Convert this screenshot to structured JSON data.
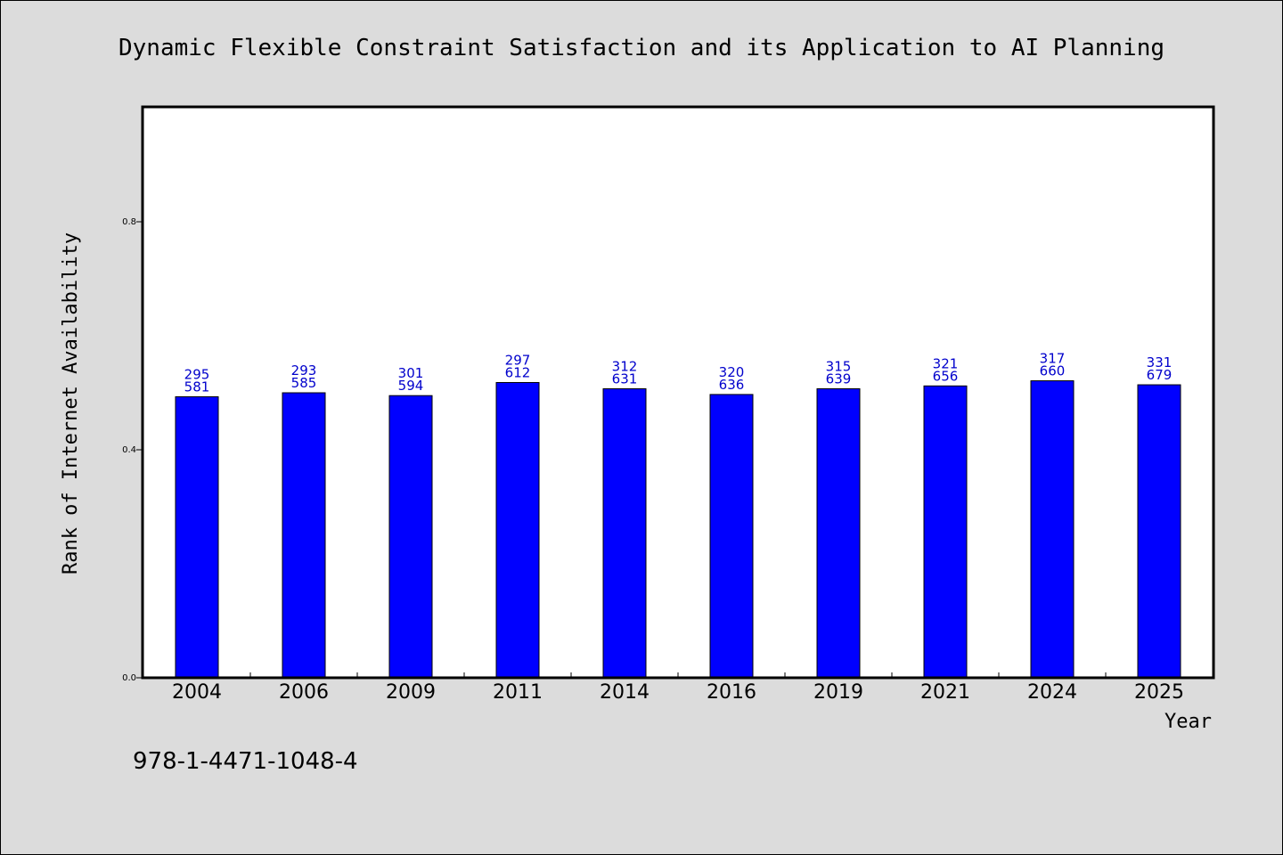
{
  "chart_data": {
    "type": "bar",
    "title": "Dynamic Flexible Constraint Satisfaction and its Application to AI Planning",
    "xlabel": "Year",
    "ylabel": "Rank of Internet Availability",
    "categories": [
      "2004",
      "2006",
      "2009",
      "2011",
      "2014",
      "2016",
      "2019",
      "2021",
      "2024",
      "2025"
    ],
    "values": [
      0.493,
      0.5,
      0.495,
      0.518,
      0.507,
      0.497,
      0.507,
      0.512,
      0.521,
      0.514
    ],
    "labels_top": [
      "295",
      "293",
      "301",
      "297",
      "312",
      "320",
      "315",
      "321",
      "317",
      "331"
    ],
    "labels_bottom": [
      "581",
      "585",
      "594",
      "612",
      "631",
      "636",
      "639",
      "656",
      "660",
      "679"
    ],
    "ylim": [
      0,
      1.0
    ],
    "yticks": [
      "0.0",
      "0.4",
      "0.8"
    ],
    "ytick_values": [
      0.0,
      0.4,
      0.8
    ],
    "bar_color": "#0000ff",
    "label_color": "#0000cc",
    "grid": false,
    "legend": "none"
  },
  "footer": {
    "isbn": "978-1-4471-1048-4"
  }
}
